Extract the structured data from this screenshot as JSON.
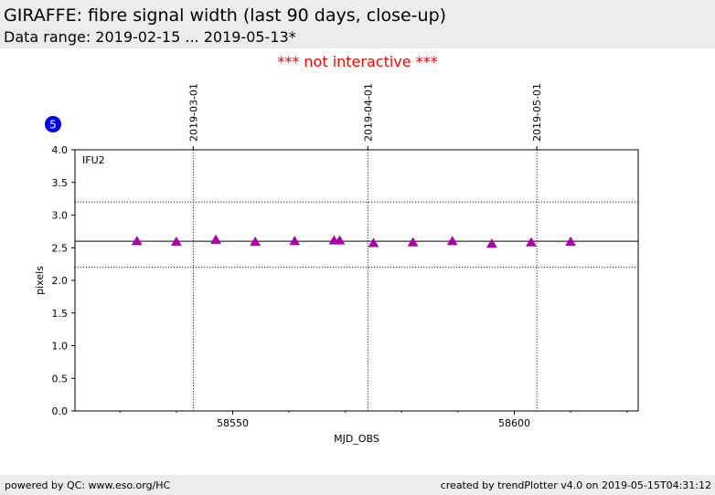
{
  "header": {
    "title": "GIRAFFE: fibre signal width (last 90 days, close-up)",
    "subtitle": "Data range: 2019-02-15 ... 2019-05-13*"
  },
  "notice": "*** not interactive ***",
  "badge": "5",
  "footer": {
    "left": "powered by QC: www.eso.org/HC",
    "right": "created by trendPlotter v4.0 on 2019-05-15T04:31:12"
  },
  "colors": {
    "marker": "#aa00aa",
    "badge": "#0000ee",
    "notice": "#ff0000"
  },
  "chart_data": {
    "type": "scatter",
    "panel_label": "IFU2",
    "xlabel": "MJD_OBS",
    "ylabel": "pixels",
    "xlim": [
      58522,
      58622
    ],
    "ylim": [
      0.0,
      4.0
    ],
    "xticks": [
      58550,
      58600
    ],
    "yticks": [
      0.0,
      0.5,
      1.0,
      1.5,
      2.0,
      2.5,
      3.0,
      3.5,
      4.0
    ],
    "date_lines": [
      {
        "x": 58543,
        "label": "2019-03-01"
      },
      {
        "x": 58574,
        "label": "2019-04-01"
      },
      {
        "x": 58604,
        "label": "2019-05-01"
      }
    ],
    "reference_line": 2.6,
    "threshold_lines": [
      2.2,
      3.2
    ],
    "series": [
      {
        "marker": "triangle",
        "x": [
          58533,
          58540,
          58547,
          58554,
          58561,
          58568,
          58569,
          58575,
          58582,
          58589,
          58596,
          58603,
          58610
        ],
        "y": [
          2.6,
          2.59,
          2.62,
          2.59,
          2.6,
          2.61,
          2.61,
          2.57,
          2.58,
          2.6,
          2.56,
          2.58,
          2.59
        ]
      }
    ]
  }
}
